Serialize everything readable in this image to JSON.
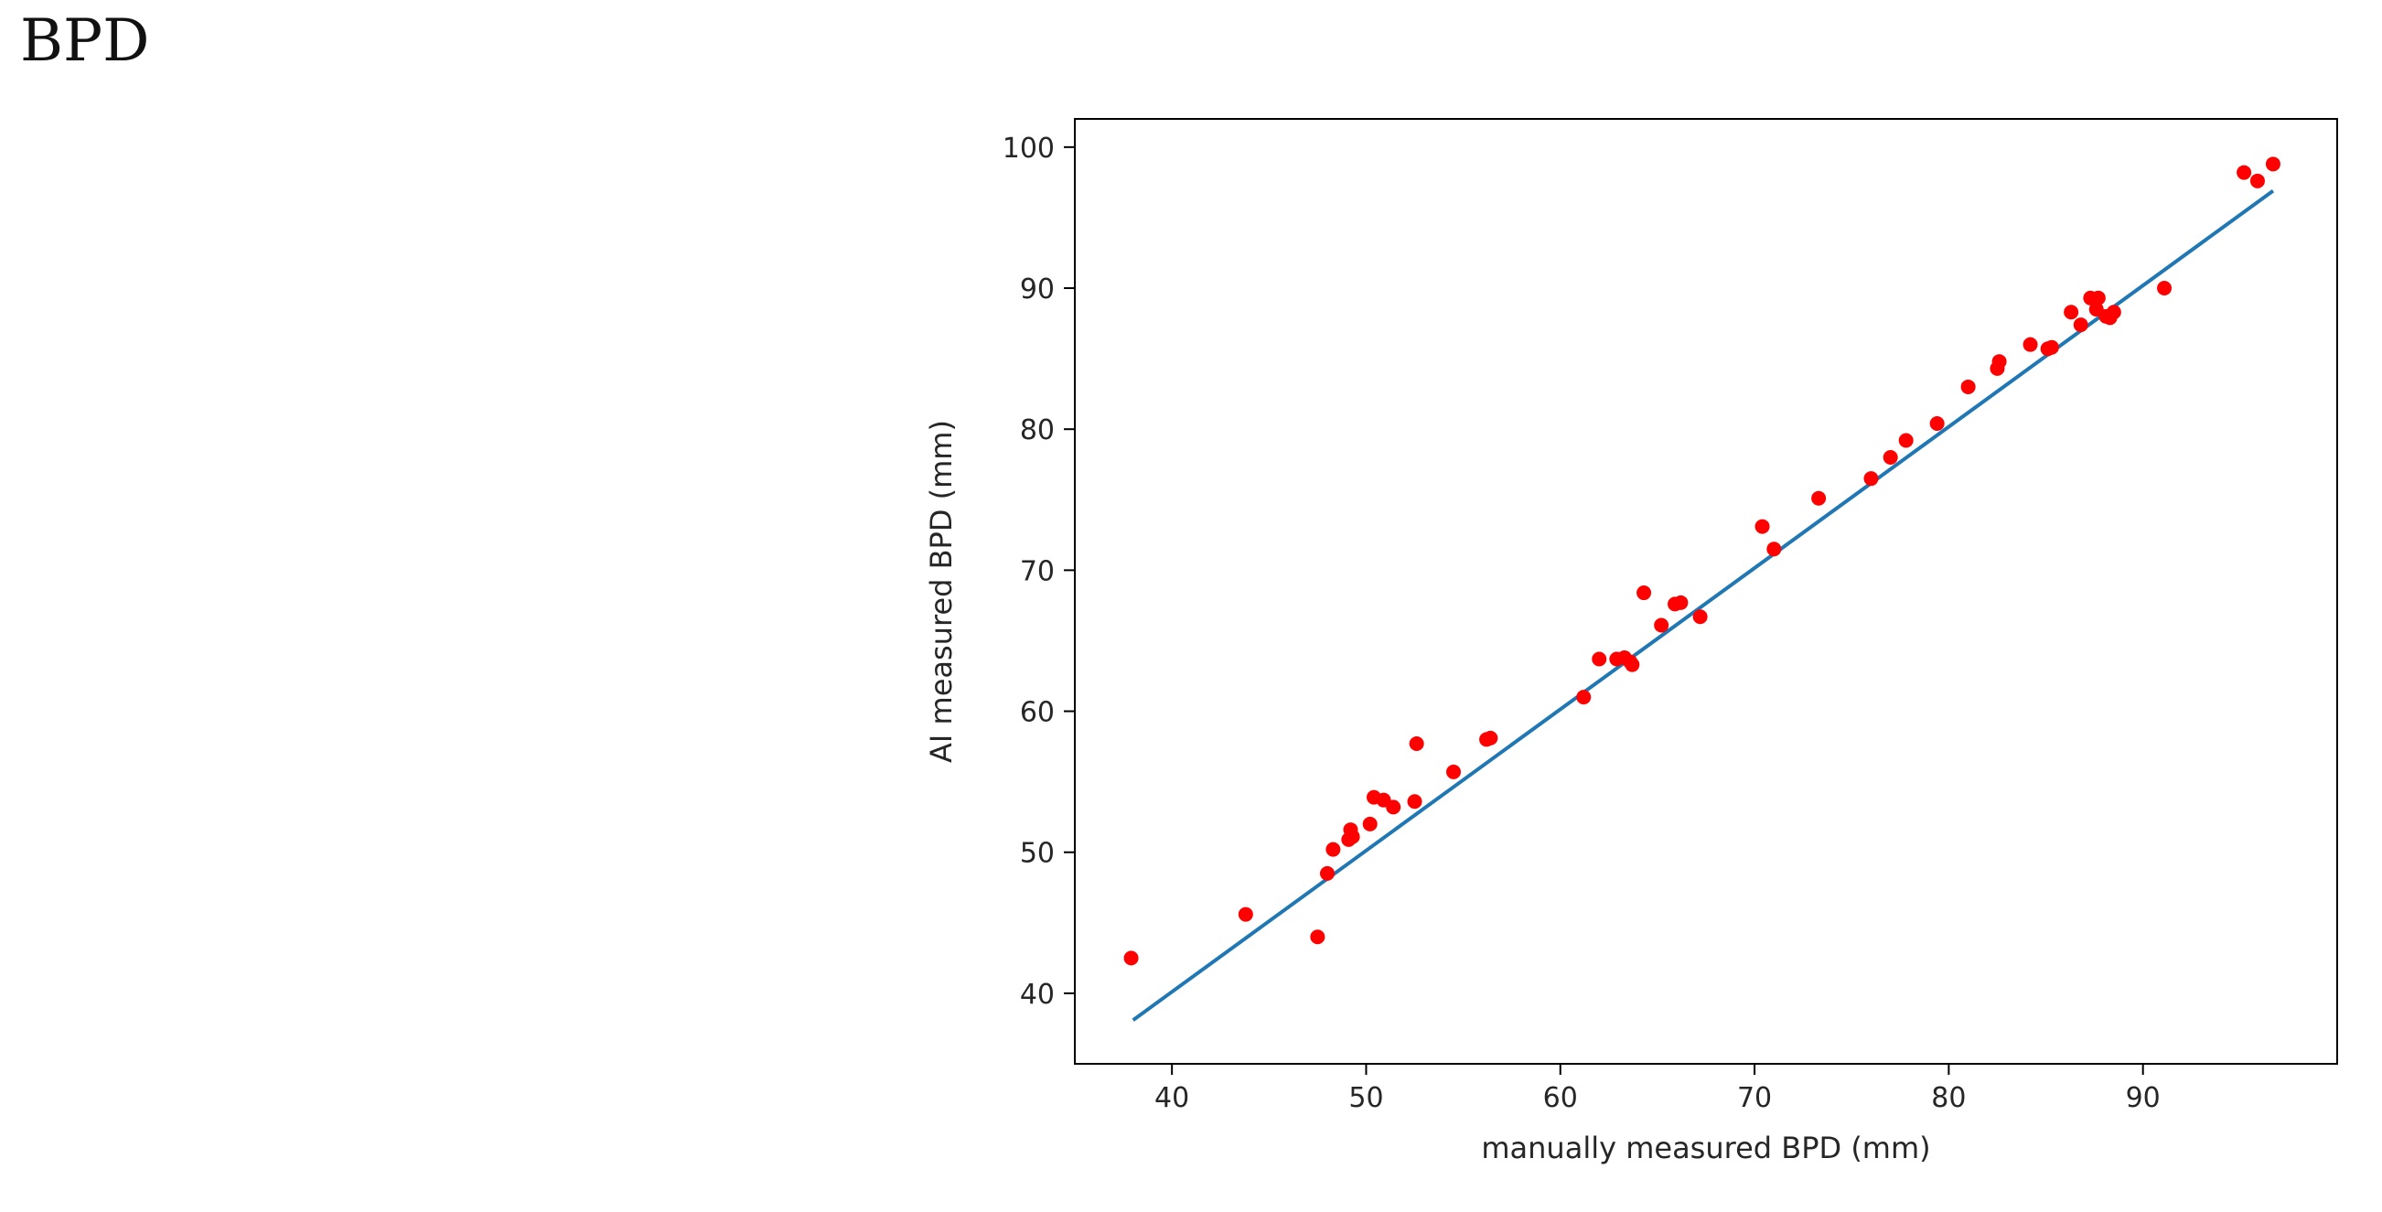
{
  "page": {
    "heading": "BPD"
  },
  "chart_data": {
    "type": "scatter",
    "title": "",
    "xlabel": "manually measured BPD (mm)",
    "ylabel": "AI measured BPD (mm)",
    "xlim": [
      35,
      100
    ],
    "ylim": [
      35,
      102
    ],
    "xticks": [
      40,
      50,
      60,
      70,
      80,
      90
    ],
    "yticks": [
      40,
      50,
      60,
      70,
      80,
      90,
      100
    ],
    "grid": false,
    "legend": "none",
    "colors": {
      "points": "#ff0000",
      "fit_line": "#1f77b4",
      "axes": "#000000"
    },
    "series": [
      {
        "kind": "points",
        "x": [
          37.9,
          43.8,
          47.5,
          48.0,
          48.3,
          49.2,
          49.3,
          49.1,
          50.2,
          50.4,
          50.9,
          51.4,
          52.5,
          52.6,
          54.5,
          56.2,
          56.4,
          61.2,
          62.0,
          62.9,
          63.3,
          63.6,
          63.7,
          64.3,
          65.2,
          65.9,
          66.2,
          67.2,
          70.4,
          71.0,
          73.3,
          76.0,
          77.0,
          77.8,
          79.4,
          81.0,
          82.5,
          82.6,
          84.2,
          85.1,
          85.3,
          86.3,
          86.8,
          87.3,
          87.7,
          87.6,
          88.1,
          88.3,
          88.5,
          91.1,
          95.2,
          95.9,
          96.7
        ],
        "y": [
          42.5,
          45.6,
          44.0,
          48.5,
          50.2,
          51.6,
          51.1,
          50.9,
          52.0,
          53.9,
          53.7,
          53.2,
          53.6,
          57.7,
          55.7,
          58.0,
          58.1,
          61.0,
          63.7,
          63.7,
          63.8,
          63.5,
          63.3,
          68.4,
          66.1,
          67.6,
          67.7,
          66.7,
          73.1,
          71.5,
          75.1,
          76.5,
          78.0,
          79.2,
          80.4,
          83.0,
          84.3,
          84.8,
          86.0,
          85.7,
          85.8,
          88.3,
          87.4,
          89.3,
          89.3,
          88.5,
          88.0,
          87.9,
          88.3,
          90.0,
          98.2,
          97.6,
          98.8
        ]
      },
      {
        "kind": "line",
        "x": [
          38.0,
          96.7
        ],
        "y": [
          38.1,
          96.9
        ]
      }
    ]
  }
}
